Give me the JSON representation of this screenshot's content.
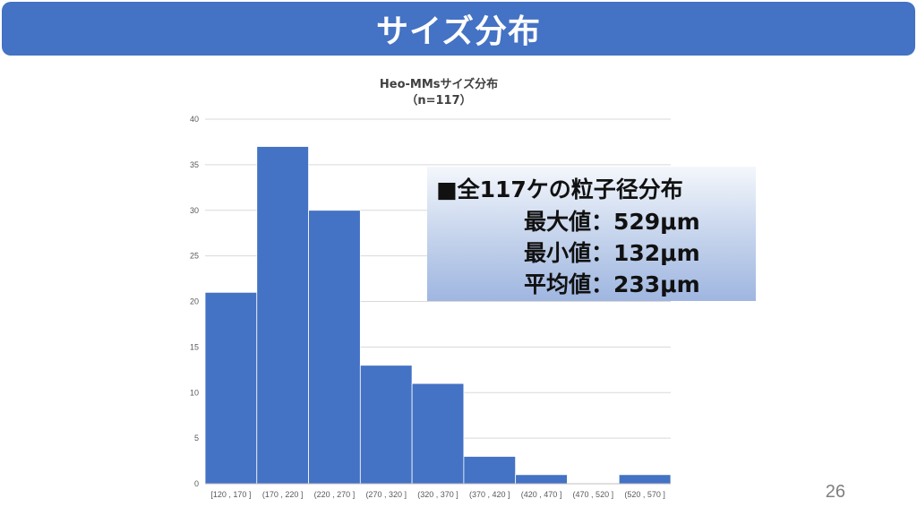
{
  "slide": {
    "title": "サイズ分布",
    "page_number": "26"
  },
  "info_box": {
    "heading": "■全117ケの粒子径分布",
    "max": "最大値：529μm",
    "min": "最小値：132μm",
    "mean": "平均値：233μm"
  },
  "chart_data": {
    "type": "bar",
    "title": "Heo-MMsサイズ分布",
    "subtitle": "（n=117）",
    "categories": [
      "[120 , 170 ]",
      "(170 , 220 ]",
      "(220 , 270 ]",
      "(270 , 320 ]",
      "(320 , 370 ]",
      "(370 , 420 ]",
      "(420 , 470 ]",
      "(470 , 520 ]",
      "(520 , 570 ]"
    ],
    "values": [
      21,
      37,
      30,
      13,
      11,
      3,
      1,
      0,
      1
    ],
    "ylim": [
      0,
      40
    ],
    "yticks": [
      0,
      5,
      10,
      15,
      20,
      25,
      30,
      35,
      40
    ],
    "grid": true,
    "bar_color": "#4472c4",
    "xlabel": "",
    "ylabel": ""
  }
}
